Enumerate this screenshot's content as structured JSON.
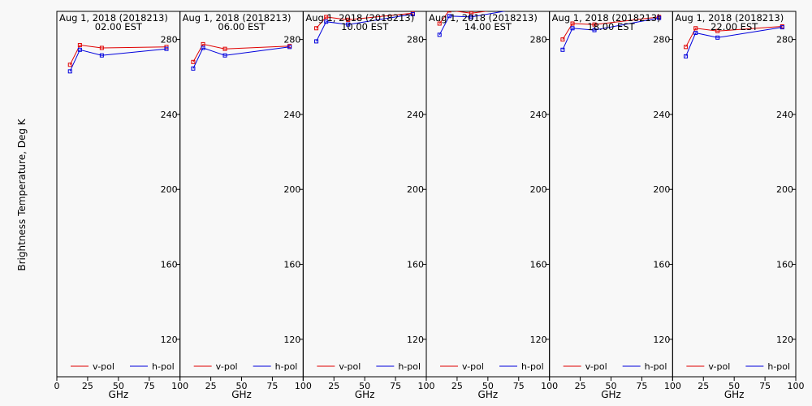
{
  "figure": {
    "ylabel": "Brightness Temperature, Deg K",
    "xlabel": "GHz",
    "colors": {
      "v_pol": "#e00000",
      "h_pol": "#0000dd",
      "axis": "#000000",
      "background": "#f8f8f8"
    }
  },
  "chart_data": [
    {
      "type": "line",
      "title_line1": "Aug  1, 2018 (2018213)",
      "title_line2": "02.00 EST",
      "xlabel": "GHz",
      "ylabel": "Brightness Temperature, Deg K",
      "xlim": [
        0,
        100
      ],
      "ylim": [
        100,
        295
      ],
      "xticks": [
        0,
        25,
        50,
        75,
        100
      ],
      "xtick_labels": [
        "0",
        "25",
        "50",
        "75",
        "100"
      ],
      "yticks": [
        120,
        160,
        200,
        240,
        280
      ],
      "ytick_labels": [
        "120",
        "160",
        "200",
        "240",
        "280"
      ],
      "legend": "bottom",
      "series": [
        {
          "name": "v-pol",
          "x": [
            10.7,
            18.7,
            36.5,
            89.0
          ],
          "values": [
            266.5,
            277.0,
            275.5,
            276.0
          ]
        },
        {
          "name": "h-pol",
          "x": [
            10.7,
            18.7,
            36.5,
            89.0
          ],
          "values": [
            263.0,
            274.5,
            271.5,
            275.0
          ]
        }
      ]
    },
    {
      "type": "line",
      "title_line1": "Aug  1, 2018 (2018213)",
      "title_line2": "06.00 EST",
      "xlabel": "GHz",
      "xlim": [
        0,
        100
      ],
      "ylim": [
        100,
        295
      ],
      "xticks": [
        0,
        25,
        50,
        75,
        100
      ],
      "xtick_labels": [
        "",
        "25",
        "50",
        "75",
        "100"
      ],
      "yticks": [
        120,
        160,
        200,
        240,
        280
      ],
      "ytick_labels": [
        "120",
        "160",
        "200",
        "240",
        "280"
      ],
      "legend": "bottom",
      "series": [
        {
          "name": "v-pol",
          "x": [
            10.7,
            18.7,
            36.5,
            89.0
          ],
          "values": [
            268.0,
            277.5,
            275.0,
            276.5
          ]
        },
        {
          "name": "h-pol",
          "x": [
            10.7,
            18.7,
            36.5,
            89.0
          ],
          "values": [
            264.5,
            275.5,
            271.5,
            276.0
          ]
        }
      ]
    },
    {
      "type": "line",
      "title_line1": "Aug  1, 2018 (2018213)",
      "title_line2": "10.00 EST",
      "xlabel": "GHz",
      "xlim": [
        0,
        100
      ],
      "ylim": [
        100,
        295
      ],
      "xticks": [
        0,
        25,
        50,
        75,
        100
      ],
      "xtick_labels": [
        "",
        "25",
        "50",
        "75",
        "100"
      ],
      "yticks": [
        120,
        160,
        200,
        240,
        280
      ],
      "ytick_labels": [
        "120",
        "160",
        "200",
        "240",
        "280"
      ],
      "legend": "bottom",
      "series": [
        {
          "name": "v-pol",
          "x": [
            10.7,
            18.7,
            36.5,
            89.0
          ],
          "values": [
            286.0,
            292.0,
            290.5,
            294.0
          ]
        },
        {
          "name": "h-pol",
          "x": [
            10.7,
            18.7,
            36.5,
            89.0
          ],
          "values": [
            279.0,
            289.5,
            288.0,
            293.5
          ]
        }
      ]
    },
    {
      "type": "line",
      "title_line1": "Aug  1, 2018 (2018213)",
      "title_line2": "14.00 EST",
      "xlabel": "GHz",
      "xlim": [
        0,
        100
      ],
      "ylim": [
        100,
        295
      ],
      "xticks": [
        0,
        25,
        50,
        75,
        100
      ],
      "xtick_labels": [
        "",
        "25",
        "50",
        "75",
        "100"
      ],
      "yticks": [
        120,
        160,
        200,
        240,
        280
      ],
      "ytick_labels": [
        "120",
        "160",
        "200",
        "240",
        "280"
      ],
      "legend": "bottom",
      "series": [
        {
          "name": "v-pol",
          "x": [
            10.7,
            18.7,
            36.5,
            89.0
          ],
          "values": [
            288.5,
            295.5,
            294.0,
            298.5
          ]
        },
        {
          "name": "h-pol",
          "x": [
            10.7,
            18.7,
            36.5,
            89.0
          ],
          "values": [
            282.5,
            292.5,
            292.0,
            298.0
          ]
        }
      ]
    },
    {
      "type": "line",
      "title_line1": "Aug  1, 2018 (2018213)",
      "title_line2": "18.00 EST",
      "xlabel": "GHz",
      "xlim": [
        0,
        100
      ],
      "ylim": [
        100,
        295
      ],
      "xticks": [
        0,
        25,
        50,
        75,
        100
      ],
      "xtick_labels": [
        "",
        "25",
        "50",
        "75",
        "100"
      ],
      "yticks": [
        120,
        160,
        200,
        240,
        280
      ],
      "ytick_labels": [
        "120",
        "160",
        "200",
        "240",
        "280"
      ],
      "legend": "bottom",
      "series": [
        {
          "name": "v-pol",
          "x": [
            10.7,
            18.7,
            36.5,
            89.0
          ],
          "values": [
            280.0,
            288.5,
            288.0,
            292.0
          ]
        },
        {
          "name": "h-pol",
          "x": [
            10.7,
            18.7,
            36.5,
            89.0
          ],
          "values": [
            274.5,
            286.0,
            285.0,
            291.5
          ]
        }
      ]
    },
    {
      "type": "line",
      "title_line1": "Aug  1, 2018 (2018213)",
      "title_line2": "22.00 EST",
      "xlabel": "GHz",
      "xlim": [
        0,
        100
      ],
      "ylim": [
        100,
        295
      ],
      "xticks": [
        0,
        25,
        50,
        75,
        100
      ],
      "xtick_labels": [
        "",
        "25",
        "50",
        "75",
        "100"
      ],
      "yticks": [
        120,
        160,
        200,
        240,
        280
      ],
      "ytick_labels": [
        "120",
        "160",
        "200",
        "240",
        "280"
      ],
      "legend": "bottom",
      "series": [
        {
          "name": "v-pol",
          "x": [
            10.7,
            18.7,
            36.5,
            89.0
          ],
          "values": [
            276.0,
            286.0,
            284.5,
            287.0
          ]
        },
        {
          "name": "h-pol",
          "x": [
            10.7,
            18.7,
            36.5,
            89.0
          ],
          "values": [
            271.0,
            283.5,
            281.0,
            286.5
          ]
        }
      ]
    }
  ]
}
